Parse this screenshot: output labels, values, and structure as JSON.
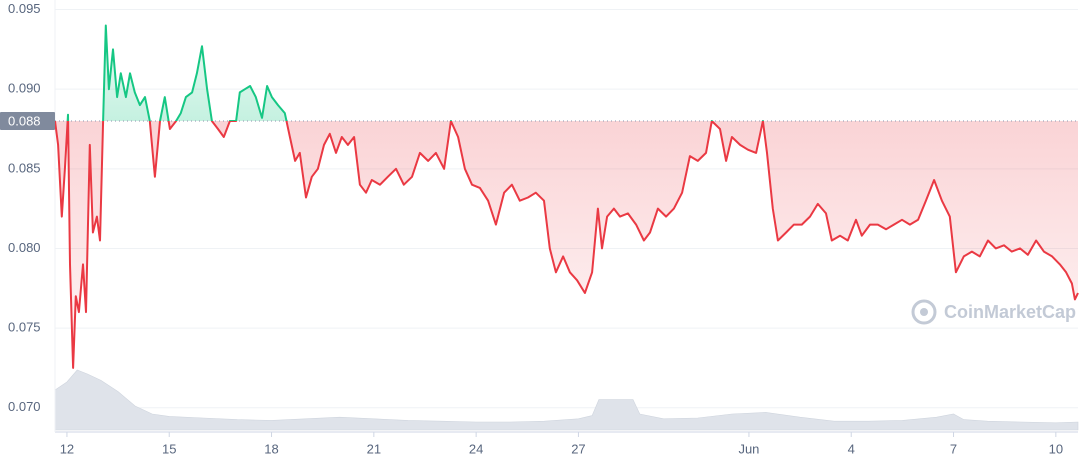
{
  "chart_data": {
    "type": "line",
    "watermark": "CoinMarketCap",
    "reference_line": 0.088,
    "color_up": "#16c784",
    "color_down": "#ea3943",
    "x": [
      -0.35,
      -0.26,
      -0.15,
      -0.06,
      0.03,
      0.09,
      0.18,
      0.26,
      0.35,
      0.47,
      0.56,
      0.67,
      0.76,
      0.88,
      0.97,
      1.06,
      1.14,
      1.23,
      1.35,
      1.47,
      1.58,
      1.73,
      1.85,
      1.99,
      2.14,
      2.29,
      2.43,
      2.58,
      2.73,
      2.87,
      3.02,
      3.2,
      3.34,
      3.49,
      3.67,
      3.81,
      3.96,
      4.11,
      4.25,
      4.43,
      4.6,
      4.78,
      4.96,
      5.07,
      5.22,
      5.37,
      5.54,
      5.72,
      5.87,
      6.01,
      6.19,
      6.39,
      6.54,
      6.69,
      6.83,
      7.01,
      7.18,
      7.36,
      7.54,
      7.71,
      7.89,
      8.06,
      8.24,
      8.42,
      8.59,
      8.77,
      8.94,
      9.18,
      9.41,
      9.65,
      9.88,
      10.12,
      10.35,
      10.59,
      10.82,
      11.06,
      11.26,
      11.47,
      11.67,
      11.88,
      12.11,
      12.35,
      12.58,
      12.82,
      13.05,
      13.28,
      13.52,
      13.75,
      13.99,
      14.16,
      14.34,
      14.55,
      14.75,
      14.96,
      15.19,
      15.4,
      15.57,
      15.69,
      15.84,
      16.04,
      16.22,
      16.45,
      16.69,
      16.92,
      17.1,
      17.33,
      17.57,
      17.8,
      18.04,
      18.27,
      18.5,
      18.74,
      18.91,
      19.15,
      19.33,
      19.5,
      19.74,
      19.97,
      20.21,
      20.41,
      20.53,
      20.7,
      20.85,
      21.09,
      21.32,
      21.55,
      21.79,
      22.02,
      22.26,
      22.43,
      22.67,
      22.9,
      23.14,
      23.31,
      23.55,
      23.78,
      24.02,
      24.25,
      24.49,
      24.72,
      24.96,
      25.19,
      25.43,
      25.66,
      25.89,
      26.07,
      26.3,
      26.54,
      26.77,
      27.01,
      27.24,
      27.48,
      27.71,
      27.95,
      28.18,
      28.42,
      28.65,
      28.89,
      29.12,
      29.3,
      29.47,
      29.56,
      29.65
    ],
    "values": [
      0.088,
      0.0865,
      0.082,
      0.085,
      0.0884,
      0.079,
      0.0725,
      0.077,
      0.076,
      0.079,
      0.076,
      0.0865,
      0.081,
      0.082,
      0.0805,
      0.088,
      0.094,
      0.09,
      0.0925,
      0.0895,
      0.091,
      0.0895,
      0.091,
      0.0898,
      0.089,
      0.0895,
      0.088,
      0.0845,
      0.088,
      0.0895,
      0.0875,
      0.088,
      0.0885,
      0.0895,
      0.0898,
      0.091,
      0.0927,
      0.09,
      0.088,
      0.0875,
      0.087,
      0.088,
      0.088,
      0.0898,
      0.09,
      0.0902,
      0.0895,
      0.0882,
      0.0902,
      0.0895,
      0.089,
      0.0885,
      0.087,
      0.0855,
      0.086,
      0.0832,
      0.0845,
      0.085,
      0.0865,
      0.0872,
      0.086,
      0.087,
      0.0865,
      0.087,
      0.084,
      0.0835,
      0.0843,
      0.084,
      0.0845,
      0.085,
      0.084,
      0.0845,
      0.086,
      0.0855,
      0.086,
      0.085,
      0.088,
      0.087,
      0.085,
      0.084,
      0.0838,
      0.083,
      0.0815,
      0.0835,
      0.084,
      0.083,
      0.0832,
      0.0835,
      0.083,
      0.08,
      0.0785,
      0.0795,
      0.0785,
      0.078,
      0.0772,
      0.0785,
      0.0825,
      0.08,
      0.082,
      0.0825,
      0.082,
      0.0822,
      0.0815,
      0.0805,
      0.081,
      0.0825,
      0.082,
      0.0825,
      0.0835,
      0.0858,
      0.0855,
      0.086,
      0.088,
      0.0875,
      0.0855,
      0.087,
      0.0865,
      0.0862,
      0.086,
      0.088,
      0.086,
      0.0825,
      0.0805,
      0.081,
      0.0815,
      0.0815,
      0.082,
      0.0828,
      0.0822,
      0.0805,
      0.0808,
      0.0805,
      0.0818,
      0.0808,
      0.0815,
      0.0815,
      0.0812,
      0.0815,
      0.0818,
      0.0815,
      0.0818,
      0.083,
      0.0843,
      0.083,
      0.082,
      0.0785,
      0.0795,
      0.0798,
      0.0795,
      0.0805,
      0.08,
      0.0802,
      0.0798,
      0.08,
      0.0796,
      0.0805,
      0.0798,
      0.0795,
      0.079,
      0.0785,
      0.0778,
      0.0768,
      0.0772
    ],
    "volume": {
      "color": "#dfe3ea",
      "ylim": [
        0,
        100
      ],
      "x": [
        -0.35,
        0,
        0.3,
        0.6,
        1,
        1.5,
        2,
        2.5,
        3,
        4,
        5,
        6,
        7,
        8,
        9,
        10,
        11,
        12,
        13,
        14,
        15,
        15.4,
        15.6,
        16.6,
        16.8,
        17.5,
        18.5,
        19.5,
        20.5,
        21.5,
        22.5,
        23.5,
        24.5,
        25.5,
        26,
        26.3,
        27,
        28,
        29,
        29.65
      ],
      "values": [
        50,
        60,
        75,
        70,
        62,
        48,
        30,
        20,
        17,
        15,
        13,
        12,
        14,
        16,
        14,
        12,
        11,
        10,
        10,
        11,
        14,
        18,
        38,
        38,
        20,
        14,
        15,
        20,
        22,
        16,
        11,
        11,
        12,
        16,
        20,
        13,
        11,
        10,
        9,
        10
      ]
    },
    "xlim": [
      -0.35,
      29.65
    ],
    "xticks": [
      {
        "value": 0,
        "label": "12"
      },
      {
        "value": 3,
        "label": "15"
      },
      {
        "value": 6,
        "label": "18"
      },
      {
        "value": 9,
        "label": "21"
      },
      {
        "value": 12,
        "label": "24"
      },
      {
        "value": 15,
        "label": "27"
      },
      {
        "value": 20,
        "label": "Jun"
      },
      {
        "value": 23,
        "label": "4"
      },
      {
        "value": 26,
        "label": "7"
      },
      {
        "value": 29,
        "label": "10"
      }
    ],
    "ylim": [
      0.0686,
      0.0956
    ],
    "yticks": [
      {
        "value": 0.07,
        "label": "0.070"
      },
      0.075,
      {
        "value": 0.08,
        "label": "0.080"
      },
      0.085,
      {
        "value": 0.09,
        "label": "0.090"
      },
      0.095
    ],
    "grid": true
  }
}
